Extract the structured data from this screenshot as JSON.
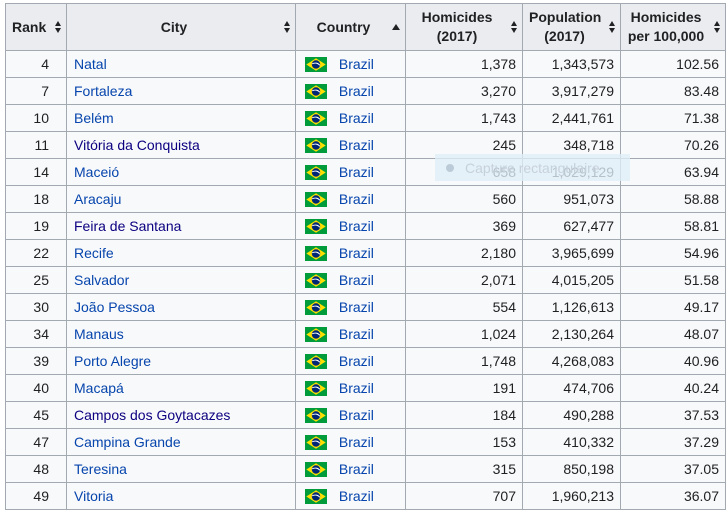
{
  "colors": {
    "header_bg": "#eaecf0",
    "table_bg": "#f8f9fa",
    "border": "#a2a9b1",
    "text": "#202122",
    "link": "#0645ad",
    "visited_link": "#0b0080",
    "flag_green": "#009c3b",
    "flag_yellow": "#fedf00",
    "flag_blue": "#002776"
  },
  "header": {
    "columns": [
      {
        "id": "rank",
        "lines": [
          "Rank"
        ],
        "sort": "both"
      },
      {
        "id": "city",
        "lines": [
          "City"
        ],
        "sort": "both"
      },
      {
        "id": "country",
        "lines": [
          "Country"
        ],
        "sort": "asc"
      },
      {
        "id": "homicides",
        "lines": [
          "Homicides",
          "(2017)"
        ],
        "sort": "both"
      },
      {
        "id": "population",
        "lines": [
          "Population",
          "(2017)"
        ],
        "sort": "both"
      },
      {
        "id": "rate",
        "lines": [
          "Homicides",
          "per 100,000"
        ],
        "sort": "both"
      }
    ]
  },
  "rows": [
    {
      "rank": "4",
      "city": "Natal",
      "city_visited": false,
      "country": "Brazil",
      "homicides": "1,378",
      "population": "1,343,573",
      "rate": "102.56"
    },
    {
      "rank": "7",
      "city": "Fortaleza",
      "city_visited": false,
      "country": "Brazil",
      "homicides": "3,270",
      "population": "3,917,279",
      "rate": "83.48"
    },
    {
      "rank": "10",
      "city": "Belém",
      "city_visited": false,
      "country": "Brazil",
      "homicides": "1,743",
      "population": "2,441,761",
      "rate": "71.38"
    },
    {
      "rank": "11",
      "city": "Vitória da Conquista",
      "city_visited": true,
      "country": "Brazil",
      "homicides": "245",
      "population": "348,718",
      "rate": "70.26"
    },
    {
      "rank": "14",
      "city": "Maceió",
      "city_visited": false,
      "country": "Brazil",
      "homicides": "658",
      "population": "1,029,129",
      "rate": "63.94"
    },
    {
      "rank": "18",
      "city": "Aracaju",
      "city_visited": false,
      "country": "Brazil",
      "homicides": "560",
      "population": "951,073",
      "rate": "58.88"
    },
    {
      "rank": "19",
      "city": "Feira de Santana",
      "city_visited": true,
      "country": "Brazil",
      "homicides": "369",
      "population": "627,477",
      "rate": "58.81"
    },
    {
      "rank": "22",
      "city": "Recife",
      "city_visited": false,
      "country": "Brazil",
      "homicides": "2,180",
      "population": "3,965,699",
      "rate": "54.96"
    },
    {
      "rank": "25",
      "city": "Salvador",
      "city_visited": false,
      "country": "Brazil",
      "homicides": "2,071",
      "population": "4,015,205",
      "rate": "51.58"
    },
    {
      "rank": "30",
      "city": "João Pessoa",
      "city_visited": false,
      "country": "Brazil",
      "homicides": "554",
      "population": "1,126,613",
      "rate": "49.17"
    },
    {
      "rank": "34",
      "city": "Manaus",
      "city_visited": false,
      "country": "Brazil",
      "homicides": "1,024",
      "population": "2,130,264",
      "rate": "48.07"
    },
    {
      "rank": "39",
      "city": "Porto Alegre",
      "city_visited": false,
      "country": "Brazil",
      "homicides": "1,748",
      "population": "4,268,083",
      "rate": "40.96"
    },
    {
      "rank": "40",
      "city": "Macapá",
      "city_visited": false,
      "country": "Brazil",
      "homicides": "191",
      "population": "474,706",
      "rate": "40.24"
    },
    {
      "rank": "45",
      "city": "Campos dos Goytacazes",
      "city_visited": true,
      "country": "Brazil",
      "homicides": "184",
      "population": "490,288",
      "rate": "37.53"
    },
    {
      "rank": "47",
      "city": "Campina Grande",
      "city_visited": false,
      "country": "Brazil",
      "homicides": "153",
      "population": "410,332",
      "rate": "37.29"
    },
    {
      "rank": "48",
      "city": "Teresina",
      "city_visited": false,
      "country": "Brazil",
      "homicides": "315",
      "population": "850,198",
      "rate": "37.05"
    },
    {
      "rank": "49",
      "city": "Vitoria",
      "city_visited": false,
      "country": "Brazil",
      "homicides": "707",
      "population": "1,960,213",
      "rate": "36.07"
    }
  ],
  "overlay": {
    "label": "Capture rectangulaire"
  }
}
